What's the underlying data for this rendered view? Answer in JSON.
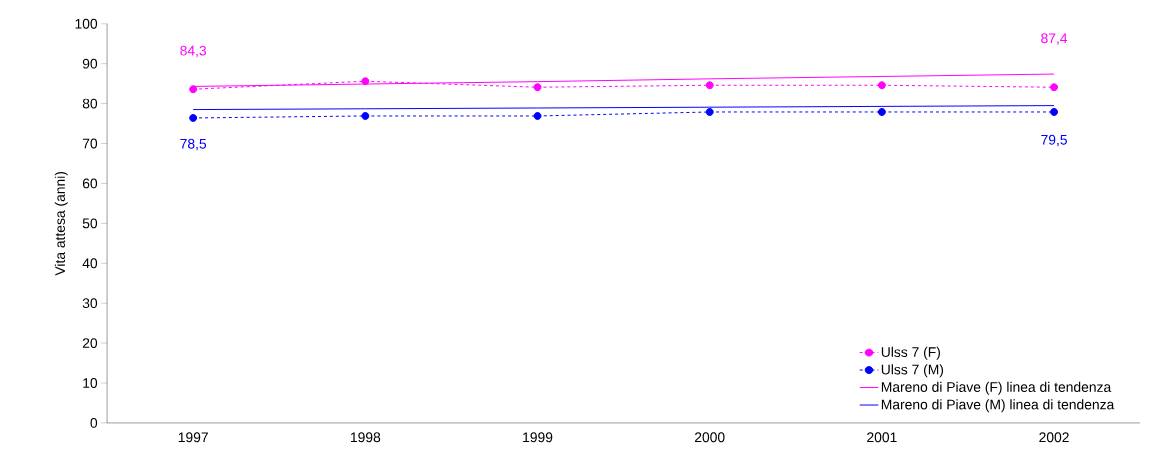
{
  "chart_data": {
    "type": "line",
    "ylabel": "Vita attesa (anni)",
    "categories": [
      "1997",
      "1998",
      "1999",
      "2000",
      "2001",
      "2002"
    ],
    "ylim": [
      0,
      100
    ],
    "yticks": [
      0,
      10,
      20,
      30,
      40,
      50,
      60,
      70,
      80,
      90,
      100
    ],
    "grid": false,
    "legend": "bottom right",
    "series": [
      {
        "name": "Ulss 7 (F)",
        "color": "#ff00ff",
        "values": [
          83.6,
          85.6,
          84.1,
          84.6,
          84.6,
          84.1
        ],
        "marker": "circle",
        "line_style": "dashed"
      },
      {
        "name": "Ulss 7 (M)",
        "color": "#0000ff",
        "values": [
          76.4,
          76.9,
          76.9,
          77.9,
          77.9,
          77.9
        ],
        "marker": "circle",
        "line_style": "dashed"
      },
      {
        "name": "Mareno di Piave (F) linea di tendenza",
        "color": "#ff00ff",
        "values": [
          84.3,
          84.9,
          85.5,
          86.2,
          86.8,
          87.4
        ],
        "value_labels": [
          "84,3",
          null,
          null,
          null,
          null,
          "87,4"
        ],
        "marker": "none",
        "line_style": "solid"
      },
      {
        "name": "Mareno di Piave (M) linea di tendenza",
        "color": "#0000ff",
        "values": [
          78.5,
          78.7,
          78.9,
          79.1,
          79.3,
          79.5
        ],
        "value_labels": [
          "78,5",
          null,
          null,
          null,
          null,
          "79,5"
        ],
        "marker": "none",
        "line_style": "solid"
      }
    ]
  }
}
